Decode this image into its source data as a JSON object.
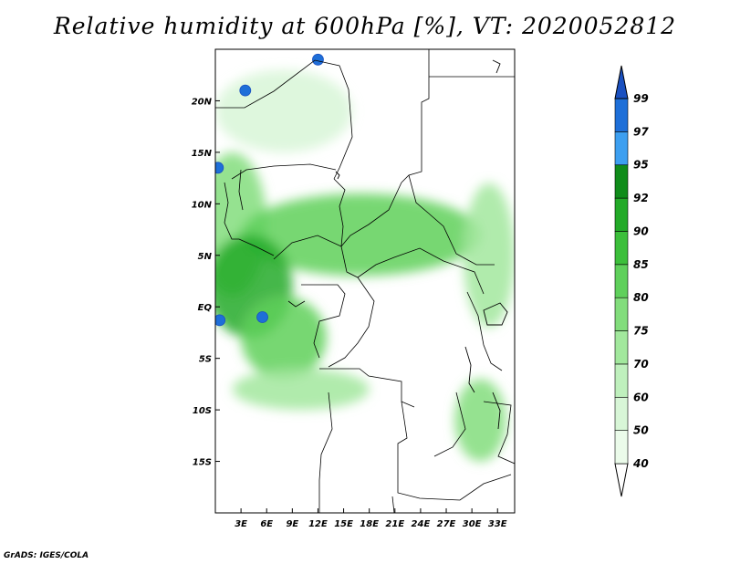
{
  "title": "Relative humidity at 600hPa [%], VT: 2020052812",
  "credit": "GrADS: IGES/COLA",
  "map": {
    "projection": "lat-lon",
    "lon_range": [
      0,
      35
    ],
    "lat_range": [
      -20,
      25
    ],
    "lon_ticks": [
      {
        "value": 3,
        "label": "3E"
      },
      {
        "value": 6,
        "label": "6E"
      },
      {
        "value": 9,
        "label": "9E"
      },
      {
        "value": 12,
        "label": "12E"
      },
      {
        "value": 15,
        "label": "15E"
      },
      {
        "value": 18,
        "label": "18E"
      },
      {
        "value": 21,
        "label": "21E"
      },
      {
        "value": 24,
        "label": "24E"
      },
      {
        "value": 27,
        "label": "27E"
      },
      {
        "value": 30,
        "label": "30E"
      },
      {
        "value": 33,
        "label": "33E"
      }
    ],
    "lat_ticks": [
      {
        "value": 20,
        "label": "20N"
      },
      {
        "value": 15,
        "label": "15N"
      },
      {
        "value": 10,
        "label": "10N"
      },
      {
        "value": 5,
        "label": "5N"
      },
      {
        "value": 0,
        "label": "EQ"
      },
      {
        "value": -5,
        "label": "5S"
      },
      {
        "value": -10,
        "label": "10S"
      },
      {
        "value": -15,
        "label": "15S"
      }
    ],
    "humid_regions": [
      {
        "name": "sahel-north",
        "lon": 8,
        "lat": 19,
        "rx": 8,
        "ry": 4,
        "level": 50
      },
      {
        "name": "west-coast",
        "lon": 2,
        "lat": 8,
        "rx": 4,
        "ry": 7,
        "level": 75
      },
      {
        "name": "central-band",
        "lon": 17,
        "lat": 7,
        "rx": 14,
        "ry": 4,
        "level": 80
      },
      {
        "name": "gulf-guinea",
        "lon": 4,
        "lat": 2,
        "rx": 5,
        "ry": 5,
        "level": 90
      },
      {
        "name": "congo-coast",
        "lon": 8,
        "lat": -3,
        "rx": 5,
        "ry": 4,
        "level": 80
      },
      {
        "name": "angola-coast",
        "lon": 10,
        "lat": -8,
        "rx": 8,
        "ry": 2,
        "level": 70
      },
      {
        "name": "east-africa",
        "lon": 32,
        "lat": 5,
        "rx": 3,
        "ry": 7,
        "level": 70
      },
      {
        "name": "southeast",
        "lon": 31,
        "lat": -11,
        "rx": 3,
        "ry": 4,
        "level": 75
      }
    ],
    "wet_spots": [
      {
        "lon": 3.5,
        "lat": 21,
        "level": 97
      },
      {
        "lon": 12,
        "lat": 24,
        "level": 97
      },
      {
        "lon": 5.5,
        "lat": -1,
        "level": 97
      },
      {
        "lon": 0.5,
        "lat": -1.3,
        "level": 97
      },
      {
        "lon": 0.3,
        "lat": 13.5,
        "level": 97
      }
    ]
  },
  "colorbar": {
    "levels": [
      "40",
      "50",
      "60",
      "70",
      "75",
      "80",
      "85",
      "90",
      "92",
      "95",
      "97",
      "99"
    ],
    "colors": [
      "#ebfbea",
      "#d8f6d7",
      "#bff0bd",
      "#a2e89d",
      "#82dd7c",
      "#5fd05b",
      "#3cbf3b",
      "#23aa28",
      "#108c1a",
      "#3d9ff0",
      "#1e6fd8",
      "#1a50c0"
    ],
    "lower_extend_color": "#ffffff",
    "upper_extend_color": "#1a50c0"
  }
}
